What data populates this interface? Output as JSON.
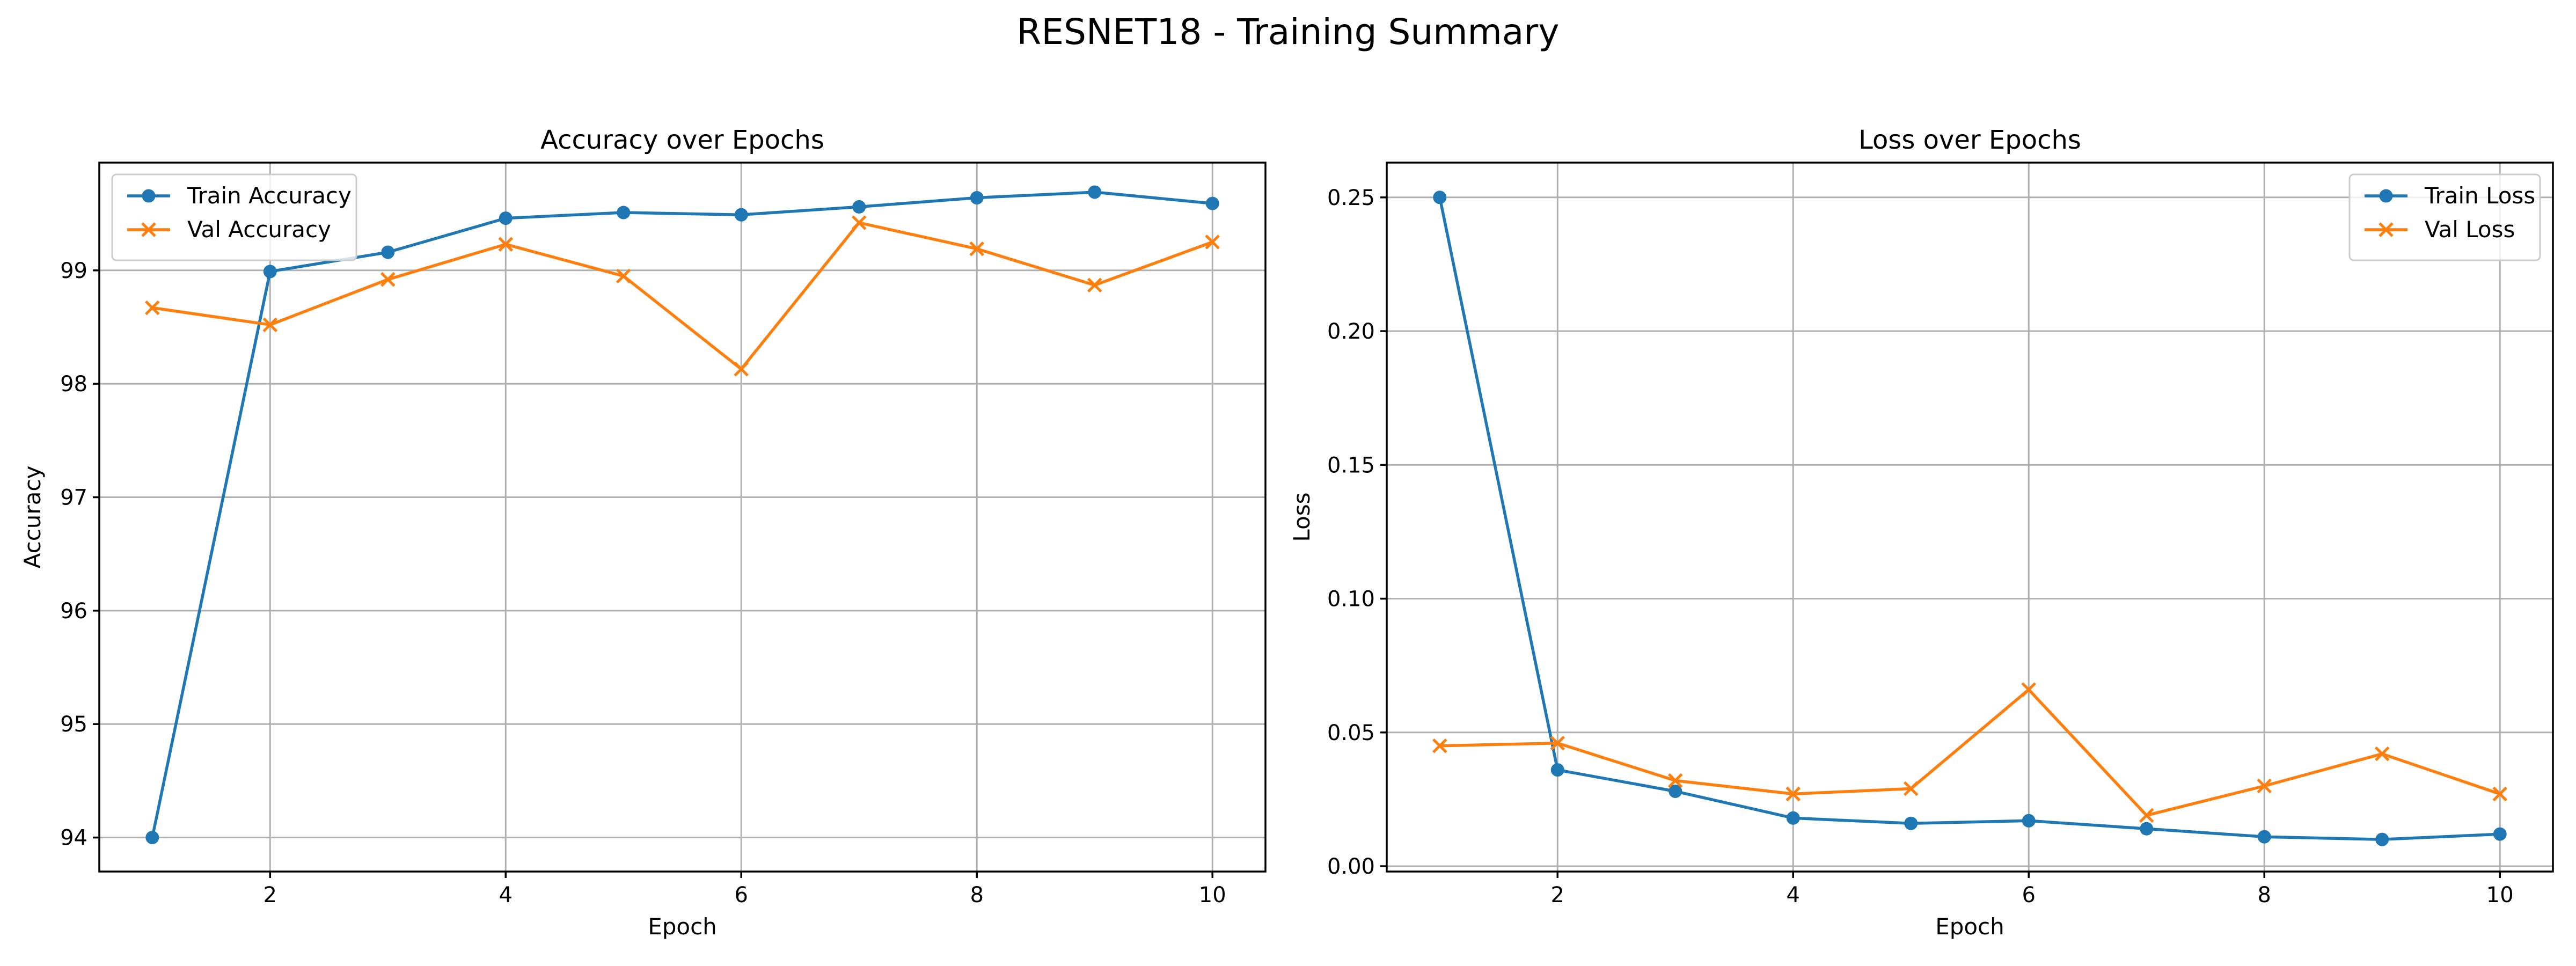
{
  "figure": {
    "title": "RESNET18 - Training Summary"
  },
  "chart_data": [
    {
      "type": "line",
      "title": "Accuracy over Epochs",
      "xlabel": "Epoch",
      "ylabel": "Accuracy",
      "x": [
        1,
        2,
        3,
        4,
        5,
        6,
        7,
        8,
        9,
        10
      ],
      "xlim": [
        0.55,
        10.45
      ],
      "ylim": [
        93.7,
        99.95
      ],
      "xticks": [
        2,
        4,
        6,
        8,
        10
      ],
      "yticks": [
        94,
        95,
        96,
        97,
        98,
        99
      ],
      "grid": true,
      "legend_position": "top-left",
      "series": [
        {
          "name": "Train Accuracy",
          "color": "#1f77b4",
          "marker": "circle",
          "values": [
            94.0,
            98.99,
            99.16,
            99.46,
            99.51,
            99.49,
            99.56,
            99.64,
            99.69,
            99.59
          ]
        },
        {
          "name": "Val Accuracy",
          "color": "#ff7f0e",
          "marker": "x",
          "values": [
            98.67,
            98.52,
            98.92,
            99.23,
            98.95,
            98.13,
            99.42,
            99.19,
            98.87,
            99.25
          ]
        }
      ]
    },
    {
      "type": "line",
      "title": "Loss over Epochs",
      "xlabel": "Epoch",
      "ylabel": "Loss",
      "x": [
        1,
        2,
        3,
        4,
        5,
        6,
        7,
        8,
        9,
        10
      ],
      "xlim": [
        0.55,
        10.45
      ],
      "ylim": [
        -0.002,
        0.263
      ],
      "xticks": [
        2,
        4,
        6,
        8,
        10
      ],
      "yticks": [
        0.0,
        0.05,
        0.1,
        0.15,
        0.2,
        0.25
      ],
      "ytick_labels": [
        "0.00",
        "0.05",
        "0.10",
        "0.15",
        "0.20",
        "0.25"
      ],
      "grid": true,
      "legend_position": "top-right",
      "series": [
        {
          "name": "Train Loss",
          "color": "#1f77b4",
          "marker": "circle",
          "values": [
            0.25,
            0.036,
            0.028,
            0.018,
            0.016,
            0.017,
            0.014,
            0.011,
            0.01,
            0.012
          ]
        },
        {
          "name": "Val Loss",
          "color": "#ff7f0e",
          "marker": "x",
          "values": [
            0.045,
            0.046,
            0.032,
            0.027,
            0.029,
            0.066,
            0.019,
            0.03,
            0.042,
            0.027
          ]
        }
      ]
    }
  ]
}
